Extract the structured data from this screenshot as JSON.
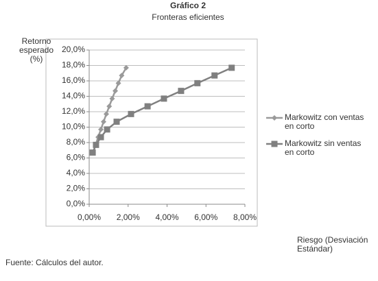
{
  "chart_data": {
    "type": "scatter",
    "title": "Gráfico 2",
    "subtitle": "Fronteras eficientes",
    "y_label": "Retorno esperado (%)",
    "x_label": "Riesgo (Desviación Estándar)",
    "source": "Fuente: Cálculos del autor.",
    "series": [
      {
        "name": "Markowitz con ventas en corto",
        "color": "#9a9a9a",
        "marker": "diamond",
        "x": [
          0.2,
          0.33,
          0.46,
          0.6,
          0.74,
          0.88,
          1.03,
          1.18,
          1.34,
          1.5,
          1.67,
          1.9
        ],
        "values": [
          6.7,
          7.7,
          8.7,
          9.7,
          10.7,
          11.7,
          12.7,
          13.7,
          14.7,
          15.7,
          16.7,
          17.7
        ]
      },
      {
        "name": "Markowitz sin ventas en corto",
        "color": "#808080",
        "marker": "square",
        "x": [
          0.18,
          0.35,
          0.6,
          0.92,
          1.41,
          2.15,
          3.0,
          3.84,
          4.72,
          5.56,
          6.44,
          7.32
        ],
        "values": [
          6.7,
          7.7,
          8.7,
          9.7,
          10.7,
          11.7,
          12.7,
          13.7,
          14.7,
          15.7,
          16.7,
          17.7
        ]
      }
    ],
    "xlim": [
      0,
      8
    ],
    "ylim": [
      0,
      20
    ],
    "xticks": [
      {
        "value": 0,
        "label": "0,00%"
      },
      {
        "value": 2,
        "label": "2,00%"
      },
      {
        "value": 4,
        "label": "4,00%"
      },
      {
        "value": 6,
        "label": "6,00%"
      },
      {
        "value": 8,
        "label": "8,00%"
      }
    ],
    "yticks": [
      {
        "value": 0,
        "label": "0,0%"
      },
      {
        "value": 2,
        "label": "2,0%"
      },
      {
        "value": 4,
        "label": "4,0%"
      },
      {
        "value": 6,
        "label": "6,0%"
      },
      {
        "value": 8,
        "label": "8,0%"
      },
      {
        "value": 10,
        "label": "10,0%"
      },
      {
        "value": 12,
        "label": "12,0%"
      },
      {
        "value": 14,
        "label": "14,0%"
      },
      {
        "value": 16,
        "label": "16,0%"
      },
      {
        "value": 18,
        "label": "18,0%"
      },
      {
        "value": 20,
        "label": "20,0%"
      }
    ],
    "grid": true,
    "legend": "right"
  }
}
